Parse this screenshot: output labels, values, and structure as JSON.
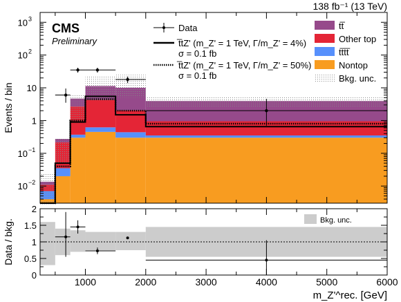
{
  "chart_data": [
    {
      "type": "bar",
      "stacked": true,
      "x_bin_edges": [
        250,
        500,
        750,
        1000,
        1500,
        2000,
        6000
      ],
      "xlim": [
        250,
        6000
      ],
      "ylim": [
        0.003,
        2000
      ],
      "yscale": "log",
      "xlabel": "m_Z'^rec. [GeV]",
      "ylabel": "Events / bin",
      "lumi_label": "138 fb⁻¹ (13 TeV)",
      "experiment_label": "CMS",
      "status_label": "Preliminary",
      "legend_placement": "top",
      "series": [
        {
          "name": "Nontop",
          "color": "#F89C20",
          "values": [
            0.004,
            0.02,
            0.3,
            0.45,
            0.3,
            0.3
          ]
        },
        {
          "name": "tt̅tt̅",
          "color": "#5790FC",
          "values": [
            0.003,
            0.015,
            0.07,
            0.17,
            0.14,
            0.05
          ]
        },
        {
          "name": "Other top",
          "color": "#E42536",
          "values": [
            0.004,
            0.18,
            2.3,
            3.7,
            1.6,
            0.6
          ]
        },
        {
          "name": "tt̅",
          "color": "#964A8B",
          "values": [
            0.0025,
            0.06,
            2.0,
            7.0,
            8.0,
            3.0
          ]
        }
      ],
      "bkg_unc_bands": [
        [
          0.003,
          0.025
        ],
        [
          0.05,
          0.3
        ],
        [
          1.0,
          6.0
        ],
        [
          4.0,
          22.0
        ],
        [
          5.0,
          25.0
        ],
        [
          2.5,
          5.5
        ]
      ],
      "signals": [
        {
          "label_line1": "t̅tZ' (m_Z' = 1 TeV, Γ/m_Z' = 4%)",
          "label_line2": "σ = 0.1 fb",
          "style": "solid",
          "values": [
            0.0004,
            0.05,
            0.9,
            5.5,
            1.5,
            0.65
          ]
        },
        {
          "label_line1": "t̅tZ' (m_Z' = 1 TeV, Γ/m_Z' = 50%)",
          "label_line2": "σ = 0.1 fb",
          "style": "dotted",
          "values": [
            0.0004,
            0.04,
            1.0,
            4.5,
            2.0,
            0.8
          ]
        }
      ],
      "data_points": [
        {
          "x": 675,
          "y": 6.0,
          "xerr_lo": 175,
          "xerr_hi": 75,
          "yerr_lo": 2.5,
          "yerr_hi": 3.5
        },
        {
          "x": 875,
          "y": 35,
          "xerr_lo": 125,
          "xerr_hi": 125,
          "yerr_lo": 6,
          "yerr_hi": 6
        },
        {
          "x": 1200,
          "y": 35,
          "xerr_lo": 200,
          "xerr_hi": 300,
          "yerr_lo": 6,
          "yerr_hi": 6
        },
        {
          "x": 1700,
          "y": 18,
          "xerr_lo": 200,
          "xerr_hi": 300,
          "yerr_lo": 4,
          "yerr_hi": 4
        },
        {
          "x": 4000,
          "y": 2.0,
          "xerr_lo": 2000,
          "xerr_hi": 2000,
          "yerr_lo": 1.3,
          "yerr_hi": 2.6
        }
      ],
      "legend": {
        "data": "Data",
        "bkg_unc": "Bkg. unc."
      }
    },
    {
      "type": "scatter",
      "ylabel": "Data / bkg.",
      "ylim": [
        0,
        2
      ],
      "xlim": [
        250,
        6000
      ],
      "xticks": [
        1000,
        2000,
        3000,
        4000,
        5000,
        6000
      ],
      "yticks": [
        0,
        0.5,
        1,
        1.5,
        2
      ],
      "reference_line": 1,
      "unc_band": [
        {
          "x0": 250,
          "x1": 500,
          "lo": 0.3,
          "hi": 1.6
        },
        {
          "x0": 500,
          "x1": 750,
          "lo": 0.6,
          "hi": 1.4
        },
        {
          "x0": 750,
          "x1": 1000,
          "lo": 0.7,
          "hi": 1.35
        },
        {
          "x0": 1000,
          "x1": 1500,
          "lo": 0.75,
          "hi": 1.3
        },
        {
          "x0": 1500,
          "x1": 2000,
          "lo": 0.75,
          "hi": 1.3
        },
        {
          "x0": 2000,
          "x1": 6000,
          "lo": 0.55,
          "hi": 1.45
        }
      ],
      "points": [
        {
          "x": 675,
          "y": 1.15,
          "xerr_lo": 175,
          "xerr_hi": 75,
          "yerr_lo": 0.6,
          "yerr_hi": 0.75
        },
        {
          "x": 875,
          "y": 1.45,
          "xerr_lo": 125,
          "xerr_hi": 125,
          "yerr_lo": 0.2,
          "yerr_hi": 0.2
        },
        {
          "x": 1200,
          "y": 0.73,
          "xerr_lo": 200,
          "xerr_hi": 300,
          "yerr_lo": 0.1,
          "yerr_hi": 0.1
        },
        {
          "x": 1700,
          "y": 1.12,
          "xerr_lo": 0,
          "xerr_hi": 0,
          "yerr_lo": 0.02,
          "yerr_hi": 0.02
        },
        {
          "x": 4000,
          "y": 0.45,
          "xerr_lo": 2000,
          "xerr_hi": 2000,
          "yerr_lo": 0.45,
          "yerr_hi": 0.6
        }
      ],
      "legend": {
        "unc": "Bkg. unc."
      }
    }
  ]
}
